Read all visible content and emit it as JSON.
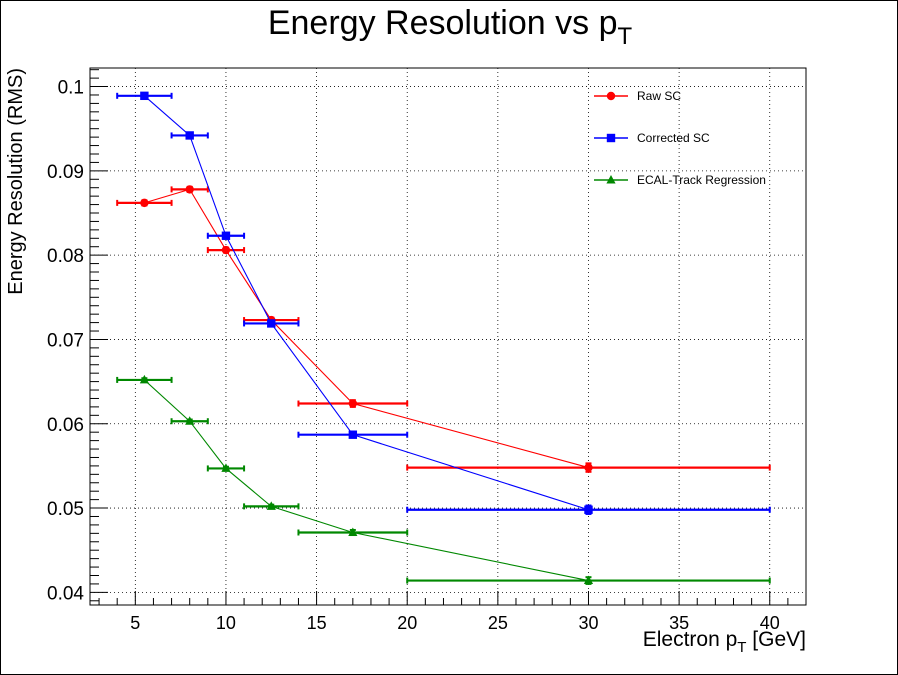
{
  "chart_data": {
    "type": "scatter",
    "title_main": "Energy Resolution vs p",
    "title_sub": "T",
    "xlabel_main": "Electron p",
    "xlabel_sub": "T",
    "xlabel_unit": " [GeV]",
    "ylabel": "Energy Resolution (RMS)",
    "xlim": [
      2.5,
      42.0
    ],
    "ylim": [
      0.0385,
      0.1022
    ],
    "xticks": [
      5,
      10,
      15,
      20,
      25,
      30,
      35,
      40
    ],
    "xtick_labels": [
      "5",
      "10",
      "15",
      "20",
      "25",
      "30",
      "35",
      "40"
    ],
    "yticks": [
      0.04,
      0.05,
      0.06,
      0.07,
      0.08,
      0.09,
      0.1
    ],
    "ytick_labels": [
      "0.04",
      "0.05",
      "0.06",
      "0.07",
      "0.08",
      "0.09",
      "0.1"
    ],
    "grid": true,
    "legend_position": "top-right",
    "series": [
      {
        "name": "Raw SC",
        "color": "#ff0000",
        "marker": "circle",
        "points": [
          {
            "x": 5.5,
            "xlo": 4,
            "xhi": 7,
            "y": 0.0862,
            "yerr": 0.0003
          },
          {
            "x": 8,
            "xlo": 7,
            "xhi": 9,
            "y": 0.0878,
            "yerr": 0.0003
          },
          {
            "x": 10,
            "xlo": 9,
            "xhi": 11,
            "y": 0.0806,
            "yerr": 0.0003
          },
          {
            "x": 12.5,
            "xlo": 11,
            "xhi": 14,
            "y": 0.0723,
            "yerr": 0.0003
          },
          {
            "x": 17,
            "xlo": 14,
            "xhi": 20,
            "y": 0.0624,
            "yerr": 0.0004
          },
          {
            "x": 30,
            "xlo": 20,
            "xhi": 40,
            "y": 0.0548,
            "yerr": 0.0005
          }
        ]
      },
      {
        "name": "Corrected SC",
        "color": "#0000ff",
        "marker": "square",
        "points": [
          {
            "x": 5.5,
            "xlo": 4,
            "xhi": 7,
            "y": 0.0989,
            "yerr": 0.0003
          },
          {
            "x": 8,
            "xlo": 7,
            "xhi": 9,
            "y": 0.0942,
            "yerr": 0.0003
          },
          {
            "x": 10,
            "xlo": 9,
            "xhi": 11,
            "y": 0.0823,
            "yerr": 0.0003
          },
          {
            "x": 12.5,
            "xlo": 11,
            "xhi": 14,
            "y": 0.0719,
            "yerr": 0.0003
          },
          {
            "x": 17,
            "xlo": 14,
            "xhi": 20,
            "y": 0.0587,
            "yerr": 0.0003
          },
          {
            "x": 30,
            "xlo": 20,
            "xhi": 40,
            "y": 0.0498,
            "yerr": 0.0005
          }
        ]
      },
      {
        "name": "ECAL-Track Regression",
        "color": "#008800",
        "marker": "triangle",
        "points": [
          {
            "x": 5.5,
            "xlo": 4,
            "xhi": 7,
            "y": 0.0652,
            "yerr": 0.0002
          },
          {
            "x": 8,
            "xlo": 7,
            "xhi": 9,
            "y": 0.0603,
            "yerr": 0.0002
          },
          {
            "x": 10,
            "xlo": 9,
            "xhi": 11,
            "y": 0.0547,
            "yerr": 0.0002
          },
          {
            "x": 12.5,
            "xlo": 11,
            "xhi": 14,
            "y": 0.0502,
            "yerr": 0.0002
          },
          {
            "x": 17,
            "xlo": 14,
            "xhi": 20,
            "y": 0.0471,
            "yerr": 0.0003
          },
          {
            "x": 30,
            "xlo": 20,
            "xhi": 40,
            "y": 0.0414,
            "yerr": 0.0004
          }
        ]
      }
    ]
  }
}
